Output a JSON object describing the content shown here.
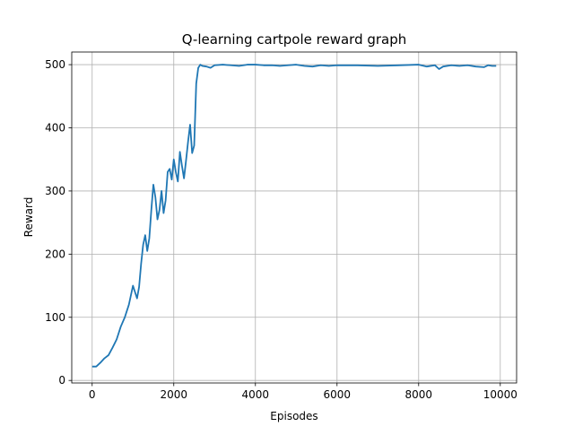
{
  "chart_data": {
    "type": "line",
    "title": "Q-learning cartpole reward graph",
    "xlabel": "Episodes",
    "ylabel": "Reward",
    "xlim": [
      -500,
      10400
    ],
    "ylim": [
      -4,
      520
    ],
    "xticks": [
      0,
      2000,
      4000,
      6000,
      8000,
      10000
    ],
    "yticks": [
      0,
      100,
      200,
      300,
      400,
      500
    ],
    "grid": true,
    "series": [
      {
        "color": "#1f77b4",
        "x": [
          0,
          100,
          200,
          300,
          400,
          500,
          600,
          650,
          700,
          800,
          900,
          1000,
          1050,
          1100,
          1150,
          1200,
          1250,
          1300,
          1350,
          1400,
          1450,
          1500,
          1550,
          1600,
          1650,
          1700,
          1750,
          1800,
          1850,
          1900,
          1950,
          2000,
          2050,
          2100,
          2150,
          2200,
          2250,
          2300,
          2350,
          2400,
          2450,
          2500,
          2550,
          2600,
          2650,
          2700,
          2800,
          2900,
          3000,
          3200,
          3400,
          3600,
          3800,
          4000,
          4200,
          4400,
          4600,
          4800,
          5000,
          5200,
          5400,
          5600,
          5800,
          6000,
          6500,
          7000,
          7500,
          8000,
          8200,
          8400,
          8500,
          8600,
          8800,
          9000,
          9200,
          9400,
          9600,
          9700,
          9800,
          9900
        ],
        "y": [
          22,
          22,
          28,
          35,
          40,
          52,
          65,
          75,
          85,
          100,
          120,
          150,
          140,
          130,
          148,
          185,
          215,
          230,
          205,
          225,
          270,
          310,
          290,
          255,
          270,
          300,
          265,
          285,
          330,
          335,
          318,
          350,
          330,
          315,
          362,
          340,
          320,
          348,
          378,
          405,
          360,
          372,
          470,
          495,
          500,
          498,
          497,
          495,
          499,
          500,
          499,
          498,
          500,
          500,
          499,
          499,
          498,
          499,
          500,
          498,
          497,
          499,
          498,
          499,
          499,
          498,
          499,
          500,
          497,
          499,
          493,
          497,
          499,
          498,
          499,
          497,
          496,
          499,
          498,
          498
        ]
      }
    ]
  }
}
